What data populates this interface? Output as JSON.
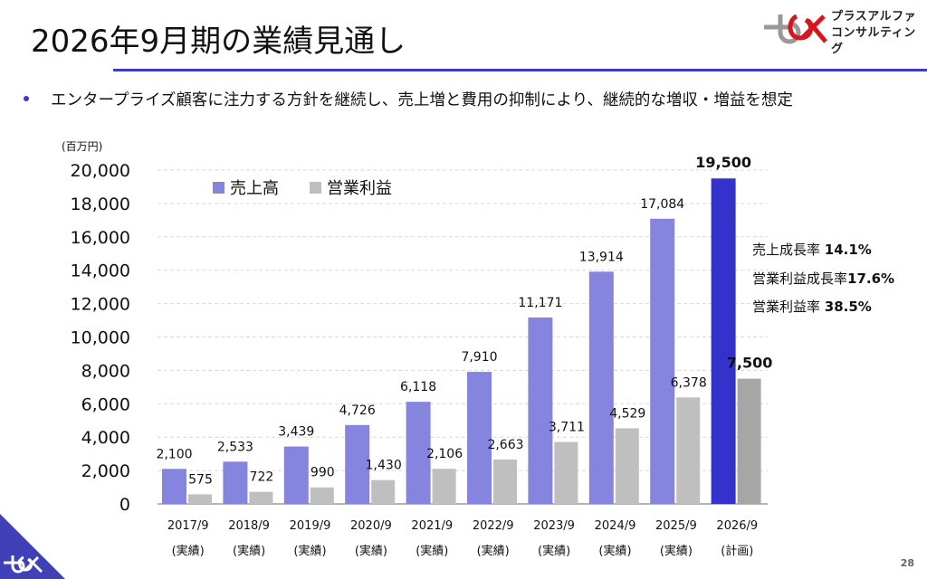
{
  "header": {
    "title": "2026年9月期の業績見通し",
    "logo_line1": "プラスアルファ",
    "logo_line2": "コンサルティング"
  },
  "bullet": {
    "text": "エンタープライズ顧客に注力する方針を継続し、売上増と費用の抑制により、継続的な増収・増益を想定"
  },
  "kpis": [
    {
      "label": "売上成長率 ",
      "value": "14.1%"
    },
    {
      "label": "営業利益成長率",
      "value": "17.6%"
    },
    {
      "label": "営業利益率 ",
      "value": "38.5%"
    }
  ],
  "colors": {
    "accent": "#3a3ad0",
    "sales_actual": "#8585e0",
    "sales_plan": "#3333cc",
    "profit_actual": "#bfbfbf",
    "profit_plan": "#a6a6a6",
    "logo_red": "#d9141e",
    "logo_gray": "#999999"
  },
  "footer": {
    "page_number": "28"
  },
  "chart_data": {
    "type": "bar",
    "title": "",
    "unit_label": "(百万円)",
    "xlabel": "",
    "ylabel": "百万円",
    "ylim": [
      0,
      20000
    ],
    "yticks": [
      0,
      2000,
      4000,
      6000,
      8000,
      10000,
      12000,
      14000,
      16000,
      18000,
      20000
    ],
    "ytick_labels": [
      "0",
      "2,000",
      "4,000",
      "6,000",
      "8,000",
      "10,000",
      "12,000",
      "14,000",
      "16,000",
      "18,000",
      "20,000"
    ],
    "grid": true,
    "legend_position": "top-left",
    "categories": [
      "2017/9",
      "2018/9",
      "2019/9",
      "2020/9",
      "2021/9",
      "2022/9",
      "2023/9",
      "2024/9",
      "2025/9",
      "2026/9"
    ],
    "category_sublabels": [
      "(実績)",
      "(実績)",
      "(実績)",
      "(実績)",
      "(実績)",
      "(実績)",
      "(実績)",
      "(実績)",
      "(実績)",
      "(計画)"
    ],
    "series": [
      {
        "name": "売上高",
        "values": [
          2100,
          2533,
          3439,
          4726,
          6118,
          7910,
          11171,
          13914,
          17084,
          19500
        ],
        "labels": [
          "2,100",
          "2,533",
          "3,439",
          "4,726",
          "6,118",
          "7,910",
          "11,171",
          "13,914",
          "17,084",
          "19,500"
        ]
      },
      {
        "name": "営業利益",
        "values": [
          575,
          722,
          990,
          1430,
          2106,
          2663,
          3711,
          4529,
          6378,
          7500
        ],
        "labels": [
          "575",
          "722",
          "990",
          "1,430",
          "2,106",
          "2,663",
          "3,711",
          "4,529",
          "6,378",
          "7,500"
        ]
      }
    ],
    "highlight_last_category": true
  }
}
